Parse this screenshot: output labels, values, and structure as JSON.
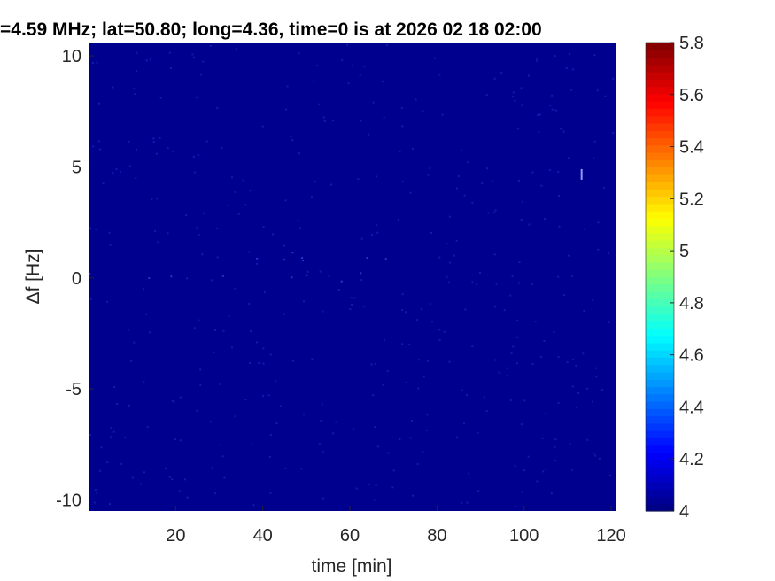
{
  "chart_data": {
    "type": "heatmap",
    "title": "=4.59 MHz;  lat=50.80; long=4.36, time=0 is at 2026 02 18 02:00",
    "xlabel": "time [min]",
    "ylabel": "Δf [Hz]",
    "xlim": [
      0,
      121
    ],
    "ylim": [
      -10.5,
      10.6
    ],
    "xticks": [
      20,
      40,
      60,
      80,
      100,
      120
    ],
    "yticks": [
      -10,
      -5,
      0,
      5,
      10
    ],
    "colormap": "jet",
    "clim": [
      4,
      5.8
    ],
    "colorbar_ticks": [
      "4",
      "4.2",
      "4.4",
      "4.6",
      "4.8",
      "5",
      "5.2",
      "5.4",
      "5.6",
      "5.8"
    ],
    "background_value": 4.0,
    "colors": {
      "background": "#00008f"
    }
  }
}
